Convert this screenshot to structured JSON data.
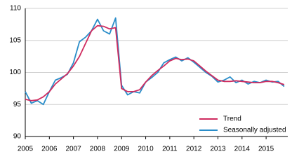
{
  "chart_data": {
    "type": "line",
    "x": [
      2005,
      2005.25,
      2005.5,
      2005.75,
      2006,
      2006.25,
      2006.5,
      2006.75,
      2007,
      2007.25,
      2007.5,
      2007.75,
      2008,
      2008.25,
      2008.5,
      2008.75,
      2009,
      2009.25,
      2009.5,
      2009.75,
      2010,
      2010.25,
      2010.5,
      2010.75,
      2011,
      2011.25,
      2011.5,
      2011.75,
      2012,
      2012.25,
      2012.5,
      2012.75,
      2013,
      2013.25,
      2013.5,
      2013.75,
      2014,
      2014.25,
      2014.5,
      2014.75,
      2015,
      2015.25,
      2015.5,
      2015.75
    ],
    "series": [
      {
        "name": "Trend",
        "color": "#cf2b5f",
        "values": [
          95.8,
          95.6,
          95.7,
          96.2,
          97.0,
          98.2,
          99.0,
          99.8,
          101.0,
          102.5,
          104.5,
          106.5,
          107.3,
          107.2,
          106.8,
          107.0,
          97.5,
          97.0,
          97.0,
          97.3,
          98.5,
          99.5,
          100.3,
          101.0,
          101.8,
          102.2,
          102.0,
          102.1,
          101.8,
          101.0,
          100.2,
          99.5,
          98.8,
          98.6,
          98.6,
          98.7,
          98.6,
          98.5,
          98.4,
          98.4,
          98.6,
          98.6,
          98.4,
          98.1
        ]
      },
      {
        "name": "Seasonally adjusted",
        "color": "#2a8dc9",
        "values": [
          97.0,
          95.2,
          95.6,
          95.0,
          97.0,
          98.8,
          99.2,
          99.7,
          101.5,
          104.8,
          105.5,
          106.5,
          108.3,
          106.5,
          106.0,
          108.5,
          98.0,
          96.5,
          97.0,
          96.8,
          98.5,
          99.2,
          100.0,
          101.5,
          102.0,
          102.4,
          101.8,
          102.3,
          101.6,
          100.8,
          100.0,
          99.4,
          98.5,
          98.8,
          99.3,
          98.4,
          98.8,
          98.2,
          98.6,
          98.4,
          98.8,
          98.5,
          98.6,
          97.8
        ]
      }
    ],
    "xlim": [
      2005,
      2015.9
    ],
    "xticks": [
      2005,
      2006,
      2007,
      2008,
      2009,
      2010,
      2011,
      2012,
      2013,
      2014,
      2015
    ],
    "ylim": [
      90,
      110
    ],
    "yticks": [
      90,
      95,
      100,
      105,
      110
    ],
    "grid": true,
    "legend": "lower right"
  }
}
